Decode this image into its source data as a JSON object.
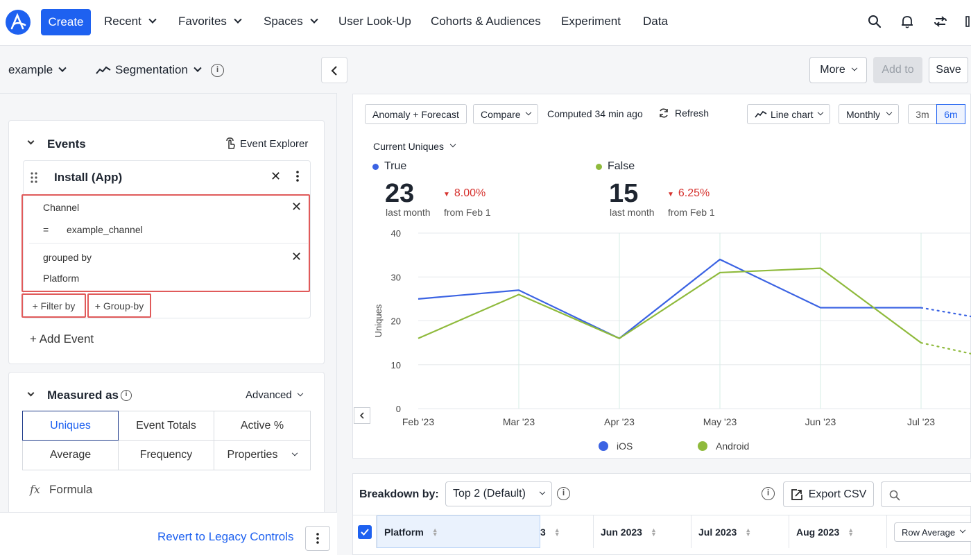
{
  "nav": {
    "create": "Create",
    "items": [
      "Recent",
      "Favorites",
      "Spaces",
      "User Look-Up",
      "Cohorts & Audiences",
      "Experiment",
      "Data"
    ]
  },
  "left_header": {
    "project": "example",
    "chart_type": "Segmentation"
  },
  "events_card": {
    "title": "Events",
    "explorer": "Event Explorer",
    "event_name": "Install (App)",
    "filter_property": "Channel",
    "filter_operator": "=",
    "filter_value": "example_channel",
    "grouped_by_label": "grouped by",
    "group_property": "Platform",
    "filter_by": "+ Filter by",
    "group_by": "+ Group-by",
    "add_event": "+ Add Event"
  },
  "measured_card": {
    "title": "Measured as",
    "advanced": "Advanced",
    "options": [
      "Uniques",
      "Event Totals",
      "Active %",
      "Average",
      "Frequency",
      "Properties"
    ],
    "formula_icon": "fx",
    "formula": "Formula"
  },
  "left_footer": {
    "revert": "Revert to Legacy Controls"
  },
  "right_header": {
    "more": "More",
    "add_to": "Add to",
    "save": "Save"
  },
  "chart_toolbar": {
    "anomaly": "Anomaly + Forecast",
    "compare": "Compare",
    "computed": "Computed 34 min ago",
    "refresh": "Refresh",
    "line_chart": "Line chart",
    "interval": "Monthly",
    "range_3m": "3m",
    "range_6m": "6m"
  },
  "metric_selector": "Current Uniques",
  "metrics": [
    {
      "label": "True",
      "value": "23",
      "period": "last month",
      "change": "8.00%",
      "since": "from Feb 1",
      "color": "#3b63e3"
    },
    {
      "label": "False",
      "value": "15",
      "period": "last month",
      "change": "6.25%",
      "since": "from Feb 1",
      "color": "#8fba3c"
    }
  ],
  "chart_data": {
    "type": "line",
    "x": [
      "Feb '23",
      "Mar '23",
      "Apr '23",
      "May '23",
      "Jun '23",
      "Jul '23"
    ],
    "ylabel": "Uniques",
    "yticks": [
      "0",
      "10",
      "20",
      "30",
      "40"
    ],
    "ylim": [
      0,
      40
    ],
    "grid": true,
    "legend_placement": "bottom",
    "series": [
      {
        "name": "iOS",
        "color": "#3b63e3",
        "values": [
          25,
          27,
          16,
          34,
          23,
          23
        ],
        "forecast_next": 19
      },
      {
        "name": "Android",
        "color": "#8fba3c",
        "values": [
          16,
          26,
          16,
          31,
          32,
          15
        ],
        "forecast_next": 10
      }
    ]
  },
  "breakdown": {
    "label": "Breakdown by:",
    "selector": "Top 2 (Default)",
    "export": "Export CSV",
    "columns": [
      "Platform",
      "3",
      "Jun 2023",
      "Jul 2023",
      "Aug 2023"
    ],
    "row_average": "Row Average"
  },
  "colors": {
    "accent": "#1e61f0",
    "highlight_border": "#e05a5a",
    "negative": "#d6322e"
  }
}
